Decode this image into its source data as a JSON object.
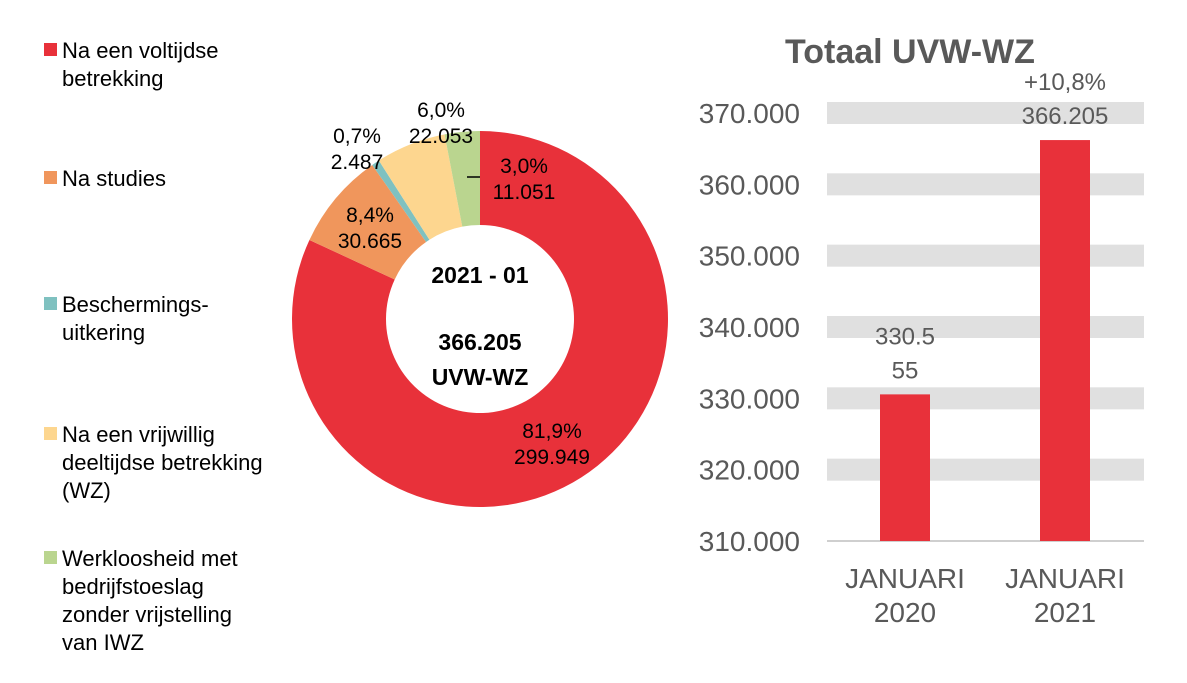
{
  "chart_data": [
    {
      "type": "pie",
      "variant": "donut",
      "center_labels": [
        "2021 - 01",
        "366.205",
        "UVW-WZ"
      ],
      "slices": [
        {
          "name": "Na een voltijdse\nbetrekking",
          "percent_label": "81,9%",
          "value_label": "299.949",
          "value": 299949,
          "color": "#E8313A"
        },
        {
          "name": "Na studies",
          "percent_label": "8,4%",
          "value_label": "30.665",
          "value": 30665,
          "color": "#F0965C"
        },
        {
          "name": "Beschermings-\nuitkering",
          "percent_label": "0,7%",
          "value_label": "2.487",
          "value": 2487,
          "color": "#7FC1C0"
        },
        {
          "name": "Na een vrijwillig\ndeeltijdse betrekking\n(WZ)",
          "percent_label": "6,0%",
          "value_label": "22.053",
          "value": 22053,
          "color": "#FDD68F"
        },
        {
          "name": "Werkloosheid met\nbedrijfstoeslag\nzonder vrijstelling\nvan IWZ",
          "percent_label": "3,0%",
          "value_label": "11.051",
          "value": 11051,
          "color": "#BAD58F"
        }
      ],
      "legend_placement": "left"
    },
    {
      "type": "bar",
      "title": "Totaal UVW-WZ",
      "categories": [
        [
          "JANUARI",
          "2020"
        ],
        [
          "JANUARI",
          "2021"
        ]
      ],
      "values": [
        330555,
        366205
      ],
      "data_labels": [
        [
          "330.5",
          "55"
        ],
        [
          "+10,8%",
          "366.205"
        ]
      ],
      "ylim": [
        310000,
        370000
      ],
      "yticks": [
        310000,
        320000,
        330000,
        340000,
        350000,
        360000,
        370000
      ],
      "ytick_labels": [
        "310.000",
        "320.000",
        "330.000",
        "340.000",
        "350.000",
        "360.000",
        "370.000"
      ],
      "bar_color": "#E8313A",
      "grid": "bands",
      "grid_color": "#E0E0E0"
    }
  ]
}
